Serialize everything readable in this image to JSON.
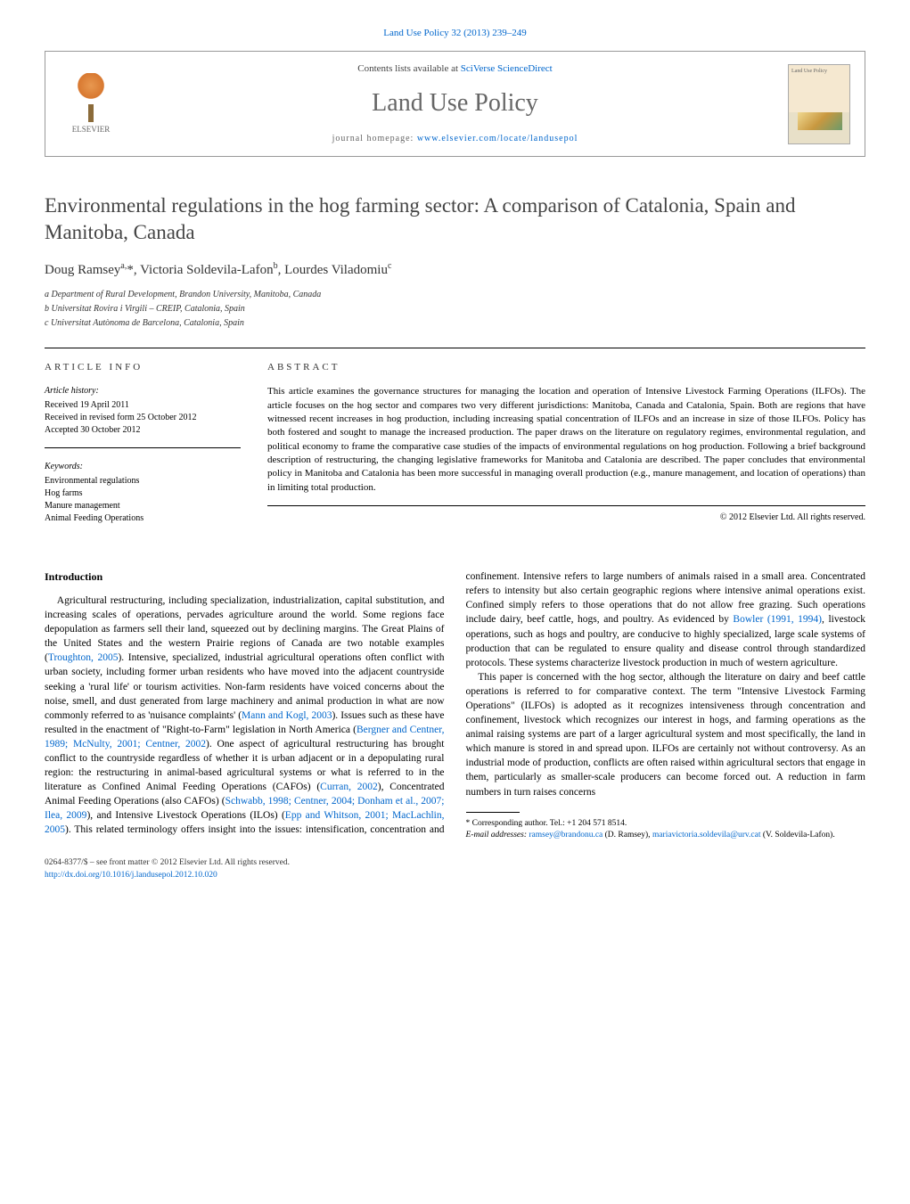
{
  "journal_ref": "Land Use Policy 32 (2013) 239–249",
  "header": {
    "contents_prefix": "Contents lists available at ",
    "contents_link": "SciVerse ScienceDirect",
    "journal_name": "Land Use Policy",
    "homepage_prefix": "journal homepage: ",
    "homepage_url": "www.elsevier.com/locate/landusepol",
    "publisher_label": "ELSEVIER",
    "cover_label": "Land Use Policy"
  },
  "title": "Environmental regulations in the hog farming sector: A comparison of Catalonia, Spain and Manitoba, Canada",
  "authors_html": "Doug Ramsey<sup>a,</sup>*, Victoria Soldevila-Lafon<sup>b</sup>, Lourdes Viladomiu<sup>c</sup>",
  "affiliations": [
    "a Department of Rural Development, Brandon University, Manitoba, Canada",
    "b Universitat Rovira i Virgili – CREIP, Catalonia, Spain",
    "c Universitat Autònoma de Barcelona, Catalonia, Spain"
  ],
  "info": {
    "heading": "ARTICLE INFO",
    "history_label": "Article history:",
    "history": [
      "Received 19 April 2011",
      "Received in revised form 25 October 2012",
      "Accepted 30 October 2012"
    ],
    "keywords_label": "Keywords:",
    "keywords": [
      "Environmental regulations",
      "Hog farms",
      "Manure management",
      "Animal Feeding Operations"
    ]
  },
  "abstract": {
    "heading": "ABSTRACT",
    "text": "This article examines the governance structures for managing the location and operation of Intensive Livestock Farming Operations (ILFOs). The article focuses on the hog sector and compares two very different jurisdictions: Manitoba, Canada and Catalonia, Spain. Both are regions that have witnessed recent increases in hog production, including increasing spatial concentration of ILFOs and an increase in size of those ILFOs. Policy has both fostered and sought to manage the increased production. The paper draws on the literature on regulatory regimes, environmental regulation, and political economy to frame the comparative case studies of the impacts of environmental regulations on hog production. Following a brief background description of restructuring, the changing legislative frameworks for Manitoba and Catalonia are described. The paper concludes that environmental policy in Manitoba and Catalonia has been more successful in managing overall production (e.g., manure management, and location of operations) than in limiting total production.",
    "copyright": "© 2012 Elsevier Ltd. All rights reserved."
  },
  "body": {
    "intro_heading": "Introduction",
    "para1_a": "Agricultural restructuring, including specialization, industrialization, capital substitution, and increasing scales of operations, pervades agriculture around the world. Some regions face depopulation as farmers sell their land, squeezed out by declining margins. The Great Plains of the United States and the western Prairie regions of Canada are two notable examples (",
    "cite1": "Troughton, 2005",
    "para1_b": "). Intensive, specialized, industrial agricultural operations often conflict with urban society, including former urban residents who have moved into the adjacent countryside seeking a 'rural life' or tourism activities. Non-farm residents have voiced concerns about the noise, smell, and dust generated from large machinery and animal production in what are now commonly referred to as 'nuisance complaints' (",
    "cite2": "Mann and Kogl, 2003",
    "para1_c": "). Issues such as these have resulted in the enactment of \"Right-to-Farm\" legislation in North America (",
    "cite3": "Bergner and Centner, 1989; McNulty, 2001; Centner, 2002",
    "para1_d": "). One aspect of agricultural restructuring has brought conflict to the countryside regardless of whether it is urban adjacent or in a depopulating rural region: the restructuring in animal-based agricultural systems or what is referred to in the literature as Confined Animal Feeding Operations (CAFOs) (",
    "cite4": "Curran, 2002",
    "para1_e": "), Concentrated Animal Feeding Operations (also CAFOs) (",
    "cite5": "Schwabb, 1998; Centner, 2004; Donham et al., 2007; Ilea, 2009",
    "para1_f": "), and Intensive Livestock Operations (ILOs) (",
    "cite6": "Epp and Whitson, 2001; MacLachlin, 2005",
    "para1_g": "). This related terminology offers insight into the issues: intensification, concentration and confinement. Intensive refers to large numbers of animals raised in a small area. Concentrated refers to intensity but also certain geographic regions where intensive animal operations exist. Confined simply refers to those operations that do not allow free grazing. Such operations include dairy, beef cattle, hogs, and poultry. As evidenced by ",
    "cite7": "Bowler (1991, 1994)",
    "para1_h": ", livestock operations, such as hogs and poultry, are conducive to highly specialized, large scale systems of production that can be regulated to ensure quality and disease control through standardized protocols. These systems characterize livestock production in much of western agriculture.",
    "para2": "This paper is concerned with the hog sector, although the literature on dairy and beef cattle operations is referred to for comparative context. The term \"Intensive Livestock Farming Operations\" (ILFOs) is adopted as it recognizes intensiveness through concentration and confinement, livestock which recognizes our interest in hogs, and farming operations as the animal raising systems are part of a larger agricultural system and most specifically, the land in which manure is stored in and spread upon. ILFOs are certainly not without controversy. As an industrial mode of production, conflicts are often raised within agricultural sectors that engage in them, particularly as smaller-scale producers can become forced out. A reduction in farm numbers in turn raises concerns"
  },
  "footnotes": {
    "corr": "* Corresponding author. Tel.: +1 204 571 8514.",
    "email_label": "E-mail addresses: ",
    "email1": "ramsey@brandonu.ca",
    "email1_who": " (D. Ramsey),",
    "email2": "mariavictoria.soldevila@urv.cat",
    "email2_who": " (V. Soldevila-Lafon)."
  },
  "footer": {
    "issn_line": "0264-8377/$ – see front matter © 2012 Elsevier Ltd. All rights reserved.",
    "doi": "http://dx.doi.org/10.1016/j.landusepol.2012.10.020"
  },
  "colors": {
    "link": "#0066cc",
    "text_gray": "#666666",
    "rule": "#000000"
  }
}
